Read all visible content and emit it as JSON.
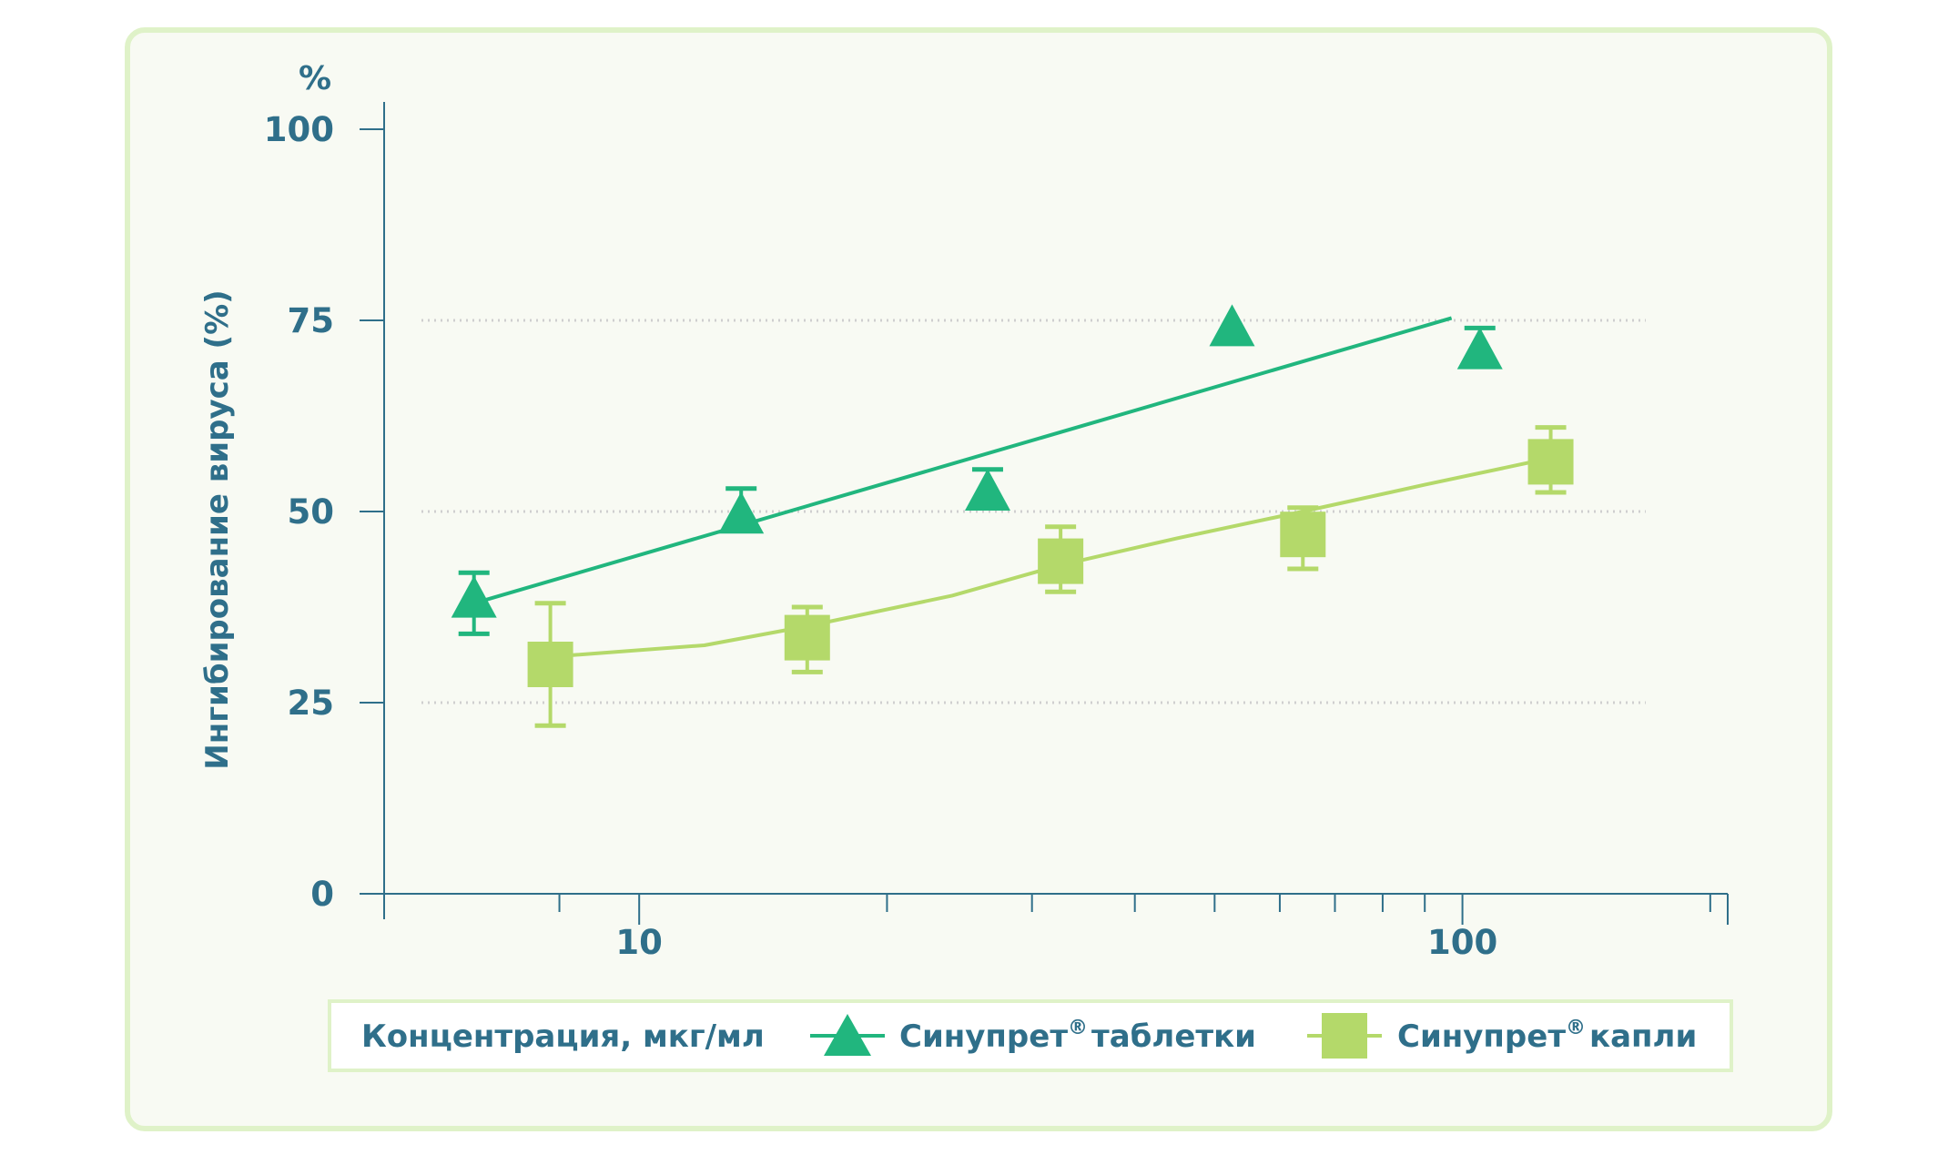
{
  "colors": {
    "axis": "#2f6f8a",
    "grid": "#cfcfcf",
    "card_border": "#dff2c8",
    "card_bg": "#f8faf3",
    "tablets": "#21b67e",
    "drops": "#b4d96a"
  },
  "chart_data": {
    "type": "scatter",
    "ylabel": "Ингибирование вируса (%)",
    "y_unit": "%",
    "xlabel": "Концентрация, мкг/мл",
    "x_scale": "log",
    "xlim": [
      4.9,
      210
    ],
    "ylim": [
      0,
      100
    ],
    "y_ticks": [
      0,
      25,
      50,
      75,
      100
    ],
    "y_grid": [
      25,
      50,
      75
    ],
    "x_tick_labels": [
      10,
      100
    ],
    "x_minor_ticks": [
      8,
      20,
      30,
      40,
      50,
      60,
      70,
      80,
      90,
      200
    ],
    "legend_placement": "bottom",
    "series": [
      {
        "name": "Синупрет® таблетки",
        "label_main": "Синупрет",
        "label_sup": "®",
        "label_tail": "таблетки",
        "marker": "triangle",
        "color": "#21b67e",
        "points": [
          {
            "x": 6.3,
            "y": 38.5,
            "err_low": 34,
            "err_high": 42
          },
          {
            "x": 13.3,
            "y": 49.5,
            "err_high": 53
          },
          {
            "x": 26.5,
            "y": 52.5,
            "err_high": 55.5
          },
          {
            "x": 52.5,
            "y": 74
          },
          {
            "x": 105,
            "y": 71,
            "err_high": 74
          }
        ],
        "fit_line": [
          [
            6.3,
            38
          ],
          [
            97,
            75.3
          ]
        ]
      },
      {
        "name": "Синупрет® капли",
        "label_main": "Синупрет",
        "label_sup": "®",
        "label_tail": "капли",
        "marker": "square",
        "color": "#b4d96a",
        "points": [
          {
            "x": 7.8,
            "y": 30,
            "err_low": 22,
            "err_high": 38
          },
          {
            "x": 16,
            "y": 33.5,
            "err_low": 29,
            "err_high": 37.5
          },
          {
            "x": 32.5,
            "y": 43.5,
            "err_low": 39.5,
            "err_high": 48
          },
          {
            "x": 64,
            "y": 47,
            "err_low": 42.5,
            "err_high": 50.5
          },
          {
            "x": 128,
            "y": 56.5,
            "err_low": 52.5,
            "err_high": 61
          }
        ],
        "fit_curve": [
          [
            7.8,
            31
          ],
          [
            12,
            32.5
          ],
          [
            16,
            35
          ],
          [
            24,
            39
          ],
          [
            32.5,
            43
          ],
          [
            45,
            46.5
          ],
          [
            64,
            50
          ],
          [
            90,
            53.5
          ],
          [
            128,
            57
          ]
        ]
      }
    ]
  }
}
